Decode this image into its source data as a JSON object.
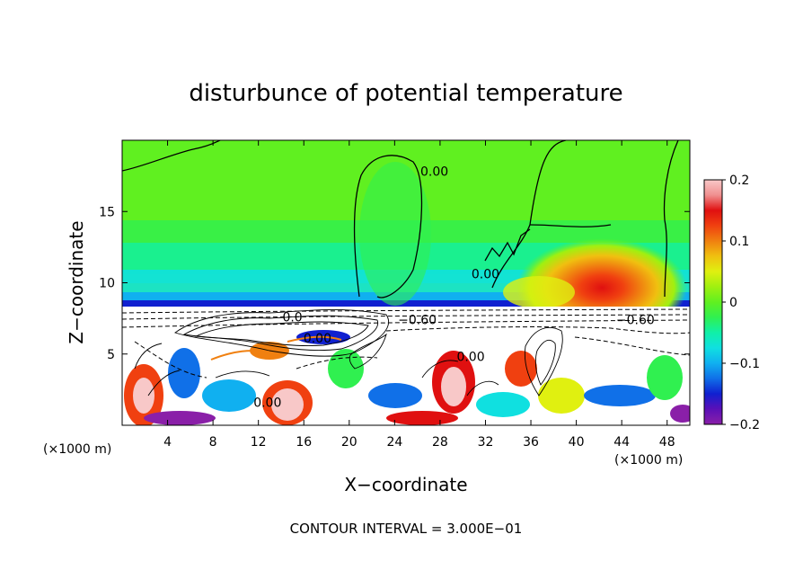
{
  "chart_data": {
    "type": "heatmap",
    "title": "disturbunce of potential temperature",
    "xlabel": "X−coordinate",
    "ylabel": "Z−coordinate",
    "x_unit": "(×1000 m)",
    "z_unit": "(×1000 m)",
    "xlim": [
      0,
      50
    ],
    "ylim": [
      0,
      20
    ],
    "x_ticks": [
      "4",
      "8",
      "12",
      "16",
      "20",
      "24",
      "28",
      "32",
      "36",
      "40",
      "44",
      "48"
    ],
    "x_tick_values": [
      4,
      8,
      12,
      16,
      20,
      24,
      28,
      32,
      36,
      40,
      44,
      48
    ],
    "y_ticks": [
      "5",
      "10",
      "15"
    ],
    "y_tick_values": [
      5,
      10,
      15
    ],
    "colorbar": {
      "range": [
        -0.2,
        0.2
      ],
      "tick_labels": [
        "0.2",
        "0.1",
        "0",
        "−0.1",
        "−0.2"
      ],
      "tick_values": [
        0.2,
        0.1,
        0,
        -0.1,
        -0.2
      ],
      "colors": [
        "#8a1fa8",
        "#5a10b8",
        "#1020d0",
        "#1070e8",
        "#10b0f0",
        "#10e0e0",
        "#10f0a8",
        "#30f050",
        "#60f020",
        "#a0f010",
        "#e0f010",
        "#f0c010",
        "#f08010",
        "#f04010",
        "#e01010",
        "#f09090",
        "#f8c8c8"
      ]
    },
    "contour_interval": "3.000E−01",
    "contour_labels": [
      {
        "text": "0.00",
        "x": 27.5,
        "z": 17.5
      },
      {
        "text": "0.00",
        "x": 32,
        "z": 10.3
      },
      {
        "text": "−0.60",
        "x": 26,
        "z": 7.1
      },
      {
        "text": "−0.60",
        "x": 45.2,
        "z": 7.1
      },
      {
        "text": "0.00",
        "x": 17.2,
        "z": 5.8
      },
      {
        "text": "0.00",
        "x": 30.7,
        "z": 4.5
      },
      {
        "text": "0.00",
        "x": 12.8,
        "z": 1.3
      },
      {
        "text": "0.0",
        "x": 15,
        "z": 7.3
      }
    ],
    "warm_anomaly": {
      "x": 42.5,
      "z": 9.2,
      "peak": 0.14
    }
  },
  "footer": "CONTOUR INTERVAL = 3.000E−01"
}
